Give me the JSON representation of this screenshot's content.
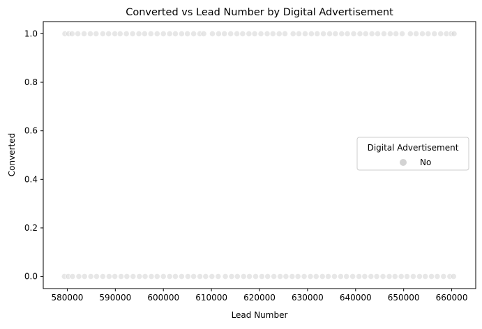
{
  "chart_data": {
    "type": "scatter",
    "title": "Converted vs Lead Number by Digital Advertisement",
    "xlabel": "Lead Number",
    "ylabel": "Converted",
    "xlim": [
      575000,
      665000
    ],
    "ylim": [
      -0.05,
      1.05
    ],
    "xticks": [
      580000,
      590000,
      600000,
      610000,
      620000,
      630000,
      640000,
      650000,
      660000
    ],
    "xtick_labels": [
      "580000",
      "590000",
      "600000",
      "610000",
      "620000",
      "630000",
      "640000",
      "650000",
      "660000"
    ],
    "yticks": [
      0.0,
      0.2,
      0.4,
      0.6,
      0.8,
      1.0
    ],
    "ytick_labels": [
      "0.0",
      "0.2",
      "0.4",
      "0.6",
      "0.8",
      "1.0"
    ],
    "grid": false,
    "legend": {
      "title": "Digital Advertisement",
      "placement": "center-right",
      "entries": [
        {
          "label": "No",
          "color": "#d3d3d3"
        }
      ]
    },
    "series": [
      {
        "name": "No",
        "color": "#d3d3d3",
        "points": [
          {
            "x": 579500,
            "y": 1
          },
          {
            "x": 580300,
            "y": 1
          },
          {
            "x": 581000,
            "y": 1
          },
          {
            "x": 582200,
            "y": 1
          },
          {
            "x": 583500,
            "y": 1
          },
          {
            "x": 584800,
            "y": 1
          },
          {
            "x": 586000,
            "y": 1
          },
          {
            "x": 587400,
            "y": 1
          },
          {
            "x": 588600,
            "y": 1
          },
          {
            "x": 589900,
            "y": 1
          },
          {
            "x": 591000,
            "y": 1
          },
          {
            "x": 592300,
            "y": 1
          },
          {
            "x": 593600,
            "y": 1
          },
          {
            "x": 594900,
            "y": 1
          },
          {
            "x": 596100,
            "y": 1
          },
          {
            "x": 597400,
            "y": 1
          },
          {
            "x": 598700,
            "y": 1
          },
          {
            "x": 600000,
            "y": 1
          },
          {
            "x": 601300,
            "y": 1
          },
          {
            "x": 602500,
            "y": 1
          },
          {
            "x": 603800,
            "y": 1
          },
          {
            "x": 605000,
            "y": 1
          },
          {
            "x": 606300,
            "y": 1
          },
          {
            "x": 607600,
            "y": 1
          },
          {
            "x": 608400,
            "y": 1
          },
          {
            "x": 610200,
            "y": 1
          },
          {
            "x": 611500,
            "y": 1
          },
          {
            "x": 612700,
            "y": 1
          },
          {
            "x": 614000,
            "y": 1
          },
          {
            "x": 615300,
            "y": 1
          },
          {
            "x": 616500,
            "y": 1
          },
          {
            "x": 617800,
            "y": 1
          },
          {
            "x": 619000,
            "y": 1
          },
          {
            "x": 620300,
            "y": 1
          },
          {
            "x": 621600,
            "y": 1
          },
          {
            "x": 622800,
            "y": 1
          },
          {
            "x": 624100,
            "y": 1
          },
          {
            "x": 625300,
            "y": 1
          },
          {
            "x": 627000,
            "y": 1
          },
          {
            "x": 628200,
            "y": 1
          },
          {
            "x": 629500,
            "y": 1
          },
          {
            "x": 630800,
            "y": 1
          },
          {
            "x": 632000,
            "y": 1
          },
          {
            "x": 633300,
            "y": 1
          },
          {
            "x": 634600,
            "y": 1
          },
          {
            "x": 635800,
            "y": 1
          },
          {
            "x": 637100,
            "y": 1
          },
          {
            "x": 638300,
            "y": 1
          },
          {
            "x": 639600,
            "y": 1
          },
          {
            "x": 640900,
            "y": 1
          },
          {
            "x": 642100,
            "y": 1
          },
          {
            "x": 643400,
            "y": 1
          },
          {
            "x": 644600,
            "y": 1
          },
          {
            "x": 645900,
            "y": 1
          },
          {
            "x": 647200,
            "y": 1
          },
          {
            "x": 648400,
            "y": 1
          },
          {
            "x": 649700,
            "y": 1
          },
          {
            "x": 651400,
            "y": 1
          },
          {
            "x": 652600,
            "y": 1
          },
          {
            "x": 653900,
            "y": 1
          },
          {
            "x": 655100,
            "y": 1
          },
          {
            "x": 656400,
            "y": 1
          },
          {
            "x": 657700,
            "y": 1
          },
          {
            "x": 658900,
            "y": 1
          },
          {
            "x": 659900,
            "y": 1
          },
          {
            "x": 660500,
            "y": 1
          },
          {
            "x": 579400,
            "y": 0
          },
          {
            "x": 580200,
            "y": 0
          },
          {
            "x": 581100,
            "y": 0
          },
          {
            "x": 582400,
            "y": 0
          },
          {
            "x": 583600,
            "y": 0
          },
          {
            "x": 584900,
            "y": 0
          },
          {
            "x": 586100,
            "y": 0
          },
          {
            "x": 587400,
            "y": 0
          },
          {
            "x": 588700,
            "y": 0
          },
          {
            "x": 589900,
            "y": 0
          },
          {
            "x": 591200,
            "y": 0
          },
          {
            "x": 592400,
            "y": 0
          },
          {
            "x": 593700,
            "y": 0
          },
          {
            "x": 595000,
            "y": 0
          },
          {
            "x": 596200,
            "y": 0
          },
          {
            "x": 597500,
            "y": 0
          },
          {
            "x": 598700,
            "y": 0
          },
          {
            "x": 600000,
            "y": 0
          },
          {
            "x": 601300,
            "y": 0
          },
          {
            "x": 602500,
            "y": 0
          },
          {
            "x": 603800,
            "y": 0
          },
          {
            "x": 605100,
            "y": 0
          },
          {
            "x": 606300,
            "y": 0
          },
          {
            "x": 607600,
            "y": 0
          },
          {
            "x": 608800,
            "y": 0
          },
          {
            "x": 610100,
            "y": 0
          },
          {
            "x": 611400,
            "y": 0
          },
          {
            "x": 612900,
            "y": 0
          },
          {
            "x": 614200,
            "y": 0
          },
          {
            "x": 615400,
            "y": 0
          },
          {
            "x": 616700,
            "y": 0
          },
          {
            "x": 617900,
            "y": 0
          },
          {
            "x": 619200,
            "y": 0
          },
          {
            "x": 620500,
            "y": 0
          },
          {
            "x": 621700,
            "y": 0
          },
          {
            "x": 623000,
            "y": 0
          },
          {
            "x": 624300,
            "y": 0
          },
          {
            "x": 625500,
            "y": 0
          },
          {
            "x": 626800,
            "y": 0
          },
          {
            "x": 628000,
            "y": 0
          },
          {
            "x": 629300,
            "y": 0
          },
          {
            "x": 630600,
            "y": 0
          },
          {
            "x": 631800,
            "y": 0
          },
          {
            "x": 633100,
            "y": 0
          },
          {
            "x": 634300,
            "y": 0
          },
          {
            "x": 635600,
            "y": 0
          },
          {
            "x": 636900,
            "y": 0
          },
          {
            "x": 638100,
            "y": 0
          },
          {
            "x": 639400,
            "y": 0
          },
          {
            "x": 640700,
            "y": 0
          },
          {
            "x": 641900,
            "y": 0
          },
          {
            "x": 643200,
            "y": 0
          },
          {
            "x": 644400,
            "y": 0
          },
          {
            "x": 645700,
            "y": 0
          },
          {
            "x": 647000,
            "y": 0
          },
          {
            "x": 648200,
            "y": 0
          },
          {
            "x": 649500,
            "y": 0
          },
          {
            "x": 650700,
            "y": 0
          },
          {
            "x": 652000,
            "y": 0
          },
          {
            "x": 653300,
            "y": 0
          },
          {
            "x": 654500,
            "y": 0
          },
          {
            "x": 655800,
            "y": 0
          },
          {
            "x": 657000,
            "y": 0
          },
          {
            "x": 658300,
            "y": 0
          },
          {
            "x": 659600,
            "y": 0
          },
          {
            "x": 660400,
            "y": 0
          }
        ]
      }
    ]
  }
}
